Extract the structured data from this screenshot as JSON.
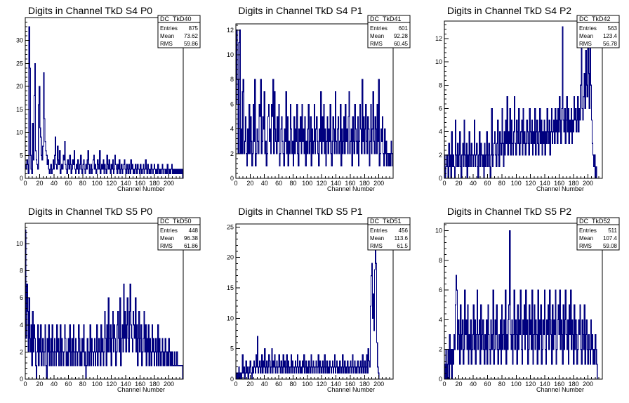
{
  "chart_data": [
    {
      "type": "histogram",
      "title": "Digits in Channel TkD S4 P0",
      "xlabel": "Channel Number",
      "xlim": [
        0,
        220
      ],
      "ylim": [
        0,
        35
      ],
      "xticks": [
        0,
        20,
        40,
        60,
        80,
        100,
        120,
        140,
        160,
        180,
        200
      ],
      "yticks": [
        0,
        5,
        10,
        15,
        20,
        25,
        30
      ],
      "stats": {
        "name": "DC_TkD40",
        "entries": "875",
        "mean": "73.62",
        "rms": "59.86"
      },
      "values": [
        3,
        2,
        4,
        3,
        1,
        33,
        24,
        5,
        2,
        1,
        12,
        4,
        18,
        25,
        6,
        4,
        3,
        2,
        16,
        20,
        11,
        9,
        5,
        4,
        7,
        23,
        13,
        8,
        6,
        5,
        3,
        4,
        2,
        1,
        2,
        3,
        1,
        2,
        4,
        2,
        5,
        9,
        3,
        2,
        7,
        4,
        3,
        6,
        1,
        2,
        3,
        2,
        5,
        4,
        8,
        3,
        2,
        1,
        4,
        3,
        2,
        5,
        3,
        1,
        2,
        4,
        3,
        6,
        2,
        1,
        3,
        2,
        4,
        1,
        2,
        3,
        5,
        2,
        1,
        3,
        4,
        2,
        1,
        3,
        2,
        4,
        6,
        3,
        1,
        2,
        3,
        1,
        2,
        4,
        5,
        2,
        3,
        1,
        2,
        4,
        3,
        2,
        6,
        1,
        2,
        3,
        2,
        4,
        1,
        3,
        2,
        1,
        5,
        3,
        2,
        4,
        2,
        1,
        3,
        2,
        4,
        1,
        2,
        5,
        3,
        2,
        1,
        3,
        2,
        4,
        1,
        2,
        3,
        1,
        2,
        3,
        4,
        2,
        1,
        3,
        2,
        1,
        3,
        2,
        1,
        4,
        2,
        3,
        1,
        2,
        1,
        3,
        2,
        1,
        3,
        2,
        2,
        1,
        3,
        2,
        1,
        2,
        3,
        1,
        2,
        4,
        2,
        1,
        3,
        2,
        1,
        2,
        1,
        3,
        2,
        1,
        2,
        3,
        2,
        1,
        2,
        1,
        3,
        2,
        1,
        2,
        1,
        2,
        3,
        1,
        2,
        2,
        1,
        2,
        1,
        3,
        2,
        1,
        2,
        1,
        2,
        3,
        1,
        2,
        1,
        2,
        1,
        2,
        1,
        2,
        1,
        2,
        1,
        2,
        1,
        2,
        0
      ]
    },
    {
      "type": "histogram",
      "title": "Digits in Channel TkD S4 P1",
      "xlabel": "Channel Number",
      "xlim": [
        0,
        220
      ],
      "ylim": [
        0,
        12.5
      ],
      "xticks": [
        0,
        20,
        40,
        60,
        80,
        100,
        120,
        140,
        160,
        180,
        200
      ],
      "yticks": [
        0,
        2,
        4,
        6,
        8,
        10,
        12
      ],
      "stats": {
        "name": "DC_TkD41",
        "entries": "601",
        "mean": "92.28",
        "rms": "60.45"
      },
      "values": [
        6,
        12,
        8,
        2,
        11,
        12,
        2,
        4,
        2,
        7,
        8,
        2,
        3,
        5,
        2,
        1,
        4,
        2,
        6,
        2,
        5,
        3,
        1,
        2,
        6,
        3,
        8,
        1,
        2,
        4,
        3,
        2,
        6,
        5,
        8,
        2,
        3,
        5,
        4,
        7,
        2,
        3,
        1,
        2,
        5,
        6,
        3,
        4,
        2,
        6,
        5,
        8,
        2,
        7,
        4,
        3,
        2,
        5,
        3,
        6,
        1,
        2,
        4,
        5,
        3,
        2,
        1,
        4,
        3,
        7,
        2,
        5,
        1,
        3,
        2,
        6,
        4,
        2,
        3,
        1,
        5,
        2,
        4,
        3,
        6,
        2,
        1,
        4,
        3,
        5,
        2,
        6,
        3,
        4,
        2,
        5,
        1,
        3,
        2,
        4,
        6,
        2,
        3,
        5,
        1,
        4,
        2,
        3,
        6,
        2,
        4,
        5,
        3,
        2,
        1,
        4,
        3,
        7,
        2,
        5,
        3,
        6,
        2,
        4,
        1,
        3,
        5,
        2,
        4,
        3,
        6,
        2,
        1,
        3,
        5,
        4,
        2,
        7,
        3,
        2,
        4,
        5,
        2,
        3,
        6,
        1,
        4,
        2,
        3,
        5,
        2,
        6,
        3,
        4,
        2,
        5,
        7,
        2,
        3,
        4,
        1,
        5,
        3,
        2,
        6,
        4,
        3,
        2,
        5,
        1,
        3,
        6,
        4,
        2,
        8,
        3,
        5,
        2,
        4,
        6,
        3,
        2,
        5,
        4,
        1,
        3,
        6,
        2,
        4,
        7,
        3,
        2,
        5,
        4,
        2,
        6,
        3,
        8,
        1,
        2,
        4,
        3,
        5,
        2,
        1,
        4,
        2,
        3,
        1,
        2,
        2,
        1,
        2,
        1,
        3,
        2,
        1
      ]
    },
    {
      "type": "histogram",
      "title": "Digits in Channel TkD S4 P2",
      "xlabel": "Channel Number",
      "xlim": [
        0,
        220
      ],
      "ylim": [
        0,
        13.5
      ],
      "xticks": [
        0,
        20,
        40,
        60,
        80,
        100,
        120,
        140,
        160,
        180,
        200
      ],
      "yticks": [
        0,
        2,
        4,
        6,
        8,
        10,
        12
      ],
      "stats": {
        "name": "DC_TkD42",
        "entries": "563",
        "mean": "123.4",
        "rms": "56.78"
      },
      "values": [
        2,
        0,
        1,
        2,
        1,
        0,
        3,
        1,
        2,
        0,
        4,
        1,
        2,
        1,
        0,
        5,
        2,
        1,
        3,
        1,
        2,
        4,
        1,
        0,
        2,
        3,
        1,
        5,
        2,
        1,
        3,
        0,
        2,
        1,
        4,
        2,
        1,
        3,
        2,
        1,
        2,
        5,
        1,
        2,
        3,
        1,
        0,
        2,
        4,
        1,
        3,
        2,
        1,
        2,
        0,
        3,
        1,
        2,
        4,
        1,
        2,
        3,
        1,
        0,
        2,
        6,
        1,
        2,
        3,
        4,
        2,
        1,
        3,
        5,
        2,
        1,
        4,
        3,
        2,
        6,
        3,
        1,
        4,
        2,
        5,
        3,
        7,
        2,
        4,
        3,
        6,
        2,
        5,
        3,
        2,
        4,
        7,
        3,
        2,
        5,
        4,
        3,
        6,
        2,
        3,
        4,
        5,
        2,
        6,
        3,
        4,
        2,
        3,
        5,
        4,
        3,
        2,
        6,
        4,
        3,
        5,
        2,
        4,
        3,
        6,
        2,
        4,
        5,
        3,
        2,
        4,
        6,
        3,
        5,
        2,
        4,
        3,
        5,
        2,
        4,
        3,
        6,
        4,
        3,
        5,
        2,
        4,
        6,
        3,
        4,
        5,
        3,
        6,
        4,
        5,
        3,
        6,
        4,
        7,
        5,
        3,
        6,
        13,
        5,
        4,
        6,
        3,
        5,
        7,
        4,
        6,
        3,
        5,
        4,
        6,
        3,
        5,
        4,
        7,
        5,
        6,
        4,
        5,
        7,
        4,
        6,
        5,
        8,
        12,
        6,
        5,
        7,
        9,
        6,
        11,
        8,
        7,
        12,
        9,
        6,
        13,
        8,
        5,
        3,
        2,
        1,
        2,
        0,
        1,
        0,
        0,
        0,
        0,
        0,
        0,
        0,
        0
      ]
    },
    {
      "type": "histogram",
      "title": "Digits in Channel TkD S5 P0",
      "xlabel": "Channel Number",
      "xlim": [
        0,
        220
      ],
      "ylim": [
        0,
        11.5
      ],
      "xticks": [
        0,
        20,
        40,
        60,
        80,
        100,
        120,
        140,
        160,
        180,
        200
      ],
      "yticks": [
        0,
        2,
        4,
        6,
        8,
        10
      ],
      "stats": {
        "name": "DC_TkD50",
        "entries": "448",
        "mean": "96.38",
        "rms": "61.86"
      },
      "values": [
        11,
        3,
        7,
        5,
        2,
        6,
        3,
        2,
        4,
        1,
        5,
        2,
        4,
        3,
        1,
        0,
        2,
        4,
        1,
        3,
        2,
        4,
        1,
        2,
        3,
        1,
        2,
        4,
        1,
        0,
        3,
        2,
        4,
        1,
        2,
        3,
        1,
        4,
        2,
        1,
        3,
        2,
        1,
        4,
        2,
        3,
        1,
        2,
        4,
        1,
        3,
        2,
        1,
        2,
        4,
        3,
        1,
        2,
        1,
        3,
        2,
        4,
        1,
        2,
        3,
        1,
        4,
        2,
        1,
        3,
        2,
        1,
        2,
        4,
        3,
        1,
        2,
        1,
        3,
        2,
        4,
        1,
        2,
        0,
        1,
        3,
        2,
        1,
        2,
        4,
        1,
        3,
        2,
        1,
        2,
        3,
        1,
        2,
        4,
        1,
        2,
        3,
        2,
        1,
        4,
        2,
        3,
        1,
        2,
        5,
        3,
        1,
        4,
        2,
        6,
        3,
        2,
        4,
        1,
        3,
        5,
        2,
        4,
        3,
        1,
        2,
        4,
        5,
        3,
        2,
        6,
        1,
        3,
        4,
        2,
        7,
        3,
        5,
        2,
        4,
        6,
        3,
        2,
        5,
        7,
        4,
        3,
        2,
        5,
        4,
        3,
        6,
        2,
        4,
        1,
        3,
        5,
        2,
        3,
        4,
        1,
        2,
        3,
        5,
        2,
        4,
        1,
        3,
        2,
        4,
        1,
        3,
        2,
        1,
        4,
        2,
        3,
        1,
        2,
        3,
        1,
        2,
        4,
        1,
        3,
        2,
        1,
        2,
        3,
        1,
        2,
        1,
        3,
        2,
        1,
        2,
        1,
        3,
        2,
        1,
        2,
        1,
        2,
        1,
        1,
        2,
        1,
        1,
        2,
        1,
        1,
        1,
        1,
        1,
        1,
        1,
        0
      ]
    },
    {
      "type": "histogram",
      "title": "Digits in Channel TkD S5 P1",
      "xlabel": "Channel Number",
      "xlim": [
        0,
        220
      ],
      "ylim": [
        0,
        25.5
      ],
      "xticks": [
        0,
        20,
        40,
        60,
        80,
        100,
        120,
        140,
        160,
        180,
        200
      ],
      "yticks": [
        0,
        5,
        10,
        15,
        20,
        25
      ],
      "stats": {
        "name": "DC_TkD51",
        "entries": "456",
        "mean": "113.6",
        "rms": "61.5"
      },
      "values": [
        1,
        0,
        1,
        0,
        2,
        0,
        1,
        0,
        1,
        4,
        1,
        2,
        0,
        1,
        3,
        1,
        2,
        0,
        1,
        2,
        3,
        1,
        0,
        2,
        1,
        3,
        2,
        1,
        4,
        2,
        7,
        1,
        2,
        3,
        1,
        2,
        4,
        1,
        3,
        2,
        5,
        1,
        2,
        3,
        1,
        2,
        4,
        3,
        1,
        2,
        5,
        1,
        3,
        2,
        4,
        1,
        2,
        3,
        1,
        2,
        4,
        2,
        1,
        3,
        2,
        1,
        4,
        2,
        3,
        1,
        2,
        4,
        1,
        3,
        2,
        1,
        2,
        4,
        1,
        3,
        2,
        1,
        2,
        3,
        1,
        2,
        4,
        1,
        2,
        3,
        1,
        2,
        1,
        3,
        2,
        4,
        1,
        2,
        3,
        1,
        2,
        1,
        3,
        2,
        1,
        4,
        2,
        1,
        3,
        2,
        1,
        2,
        3,
        1,
        2,
        4,
        1,
        3,
        2,
        1,
        2,
        3,
        1,
        2,
        4,
        1,
        2,
        3,
        1,
        2,
        1,
        3,
        2,
        1,
        2,
        3,
        1,
        2,
        4,
        1,
        2,
        3,
        1,
        2,
        1,
        3,
        2,
        1,
        2,
        4,
        1,
        2,
        3,
        1,
        2,
        1,
        3,
        2,
        1,
        2,
        3,
        1,
        2,
        4,
        1,
        2,
        3,
        1,
        2,
        1,
        3,
        2,
        1,
        2,
        3,
        1,
        2,
        4,
        1,
        2,
        3,
        1,
        2,
        4,
        1,
        5,
        3,
        2,
        12,
        17,
        19,
        10,
        14,
        8,
        18,
        22,
        19,
        6,
        2,
        1,
        0,
        0,
        0,
        0,
        0,
        0,
        0,
        0,
        0,
        0,
        0,
        0,
        0,
        0,
        0,
        0,
        0,
        0,
        0,
        0
      ]
    },
    {
      "type": "histogram",
      "title": "Digits in Channel TkD S5 P2",
      "xlabel": "Channel Number",
      "xlim": [
        0,
        220
      ],
      "ylim": [
        0,
        10.5
      ],
      "xticks": [
        0,
        20,
        40,
        60,
        80,
        100,
        120,
        140,
        160,
        180,
        200
      ],
      "yticks": [
        0,
        2,
        4,
        6,
        8,
        10
      ],
      "stats": {
        "name": "DC_TkD52",
        "entries": "511",
        "mean": "107.4",
        "rms": "59.08"
      },
      "values": [
        1,
        0,
        2,
        0,
        1,
        2,
        0,
        3,
        1,
        2,
        0,
        2,
        1,
        3,
        2,
        5,
        7,
        6,
        2,
        4,
        3,
        1,
        5,
        2,
        3,
        4,
        1,
        2,
        6,
        3,
        4,
        2,
        5,
        1,
        3,
        2,
        4,
        1,
        2,
        3,
        5,
        2,
        4,
        1,
        3,
        6,
        2,
        3,
        4,
        1,
        5,
        2,
        3,
        4,
        2,
        1,
        3,
        2,
        4,
        1,
        5,
        3,
        2,
        1,
        4,
        2,
        3,
        6,
        1,
        2,
        4,
        3,
        5,
        2,
        1,
        3,
        2,
        4,
        1,
        5,
        2,
        3,
        4,
        2,
        6,
        1,
        3,
        2,
        4,
        5,
        10,
        3,
        2,
        4,
        1,
        3,
        6,
        2,
        4,
        3,
        1,
        5,
        2,
        4,
        3,
        6,
        2,
        1,
        4,
        3,
        5,
        2,
        6,
        3,
        4,
        1,
        2,
        5,
        3,
        4,
        2,
        6,
        1,
        3,
        5,
        2,
        4,
        3,
        1,
        6,
        2,
        4,
        3,
        5,
        1,
        2,
        4,
        3,
        6,
        2,
        1,
        4,
        3,
        5,
        2,
        6,
        4,
        3,
        1,
        5,
        2,
        4,
        3,
        6,
        1,
        2,
        4,
        5,
        3,
        6,
        2,
        4,
        3,
        1,
        5,
        2,
        4,
        6,
        3,
        2,
        4,
        1,
        5,
        3,
        6,
        2,
        4,
        3,
        1,
        5,
        2,
        4,
        3,
        1,
        2,
        4,
        3,
        5,
        2,
        1,
        4,
        3,
        2,
        5,
        1,
        3,
        4,
        2,
        1,
        3,
        2,
        1,
        4,
        2,
        3,
        1,
        2,
        1,
        3,
        2,
        1,
        0,
        0,
        0,
        0,
        0,
        0,
        0
      ]
    }
  ]
}
